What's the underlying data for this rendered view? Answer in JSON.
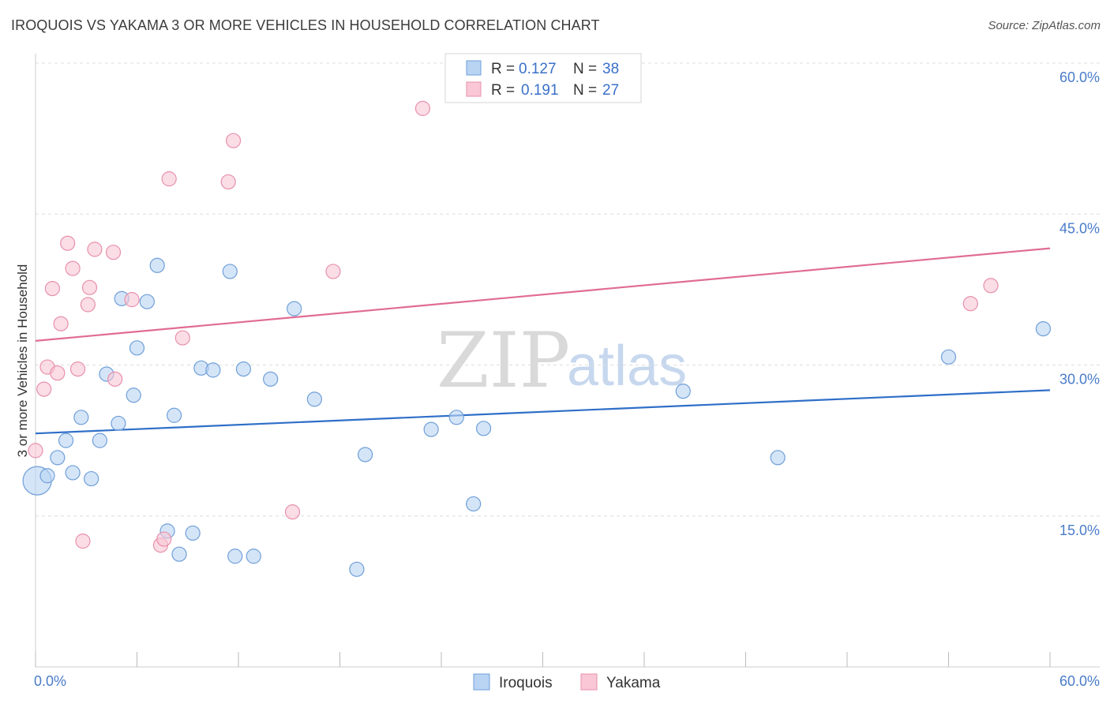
{
  "header": {
    "title": "IROQUOIS VS YAKAMA 3 OR MORE VEHICLES IN HOUSEHOLD CORRELATION CHART",
    "source": "Source: ZipAtlas.com"
  },
  "legend": {
    "rows": [
      {
        "r_label": "R =",
        "r_value": "0.127",
        "n_label": "N =",
        "n_value": "38"
      },
      {
        "r_label": "R =",
        "r_value": "0.191",
        "n_label": "N =",
        "n_value": "27"
      }
    ]
  },
  "watermark": {
    "zip": "ZIP",
    "atlas": "atlas"
  },
  "colors": {
    "iroquois_fill": "#b9d3f3",
    "iroquois_stroke": "#6f9fd8",
    "iroquois_line": "#2f6fc8",
    "yakama_fill": "#f9c7d6",
    "yakama_stroke": "#e890ac",
    "yakama_line": "#e06c94",
    "grid": "#dddddd",
    "tick_text": "#4a7cc9"
  },
  "chart_data": {
    "type": "scatter",
    "title": "IROQUOIS VS YAKAMA 3 OR MORE VEHICLES IN HOUSEHOLD CORRELATION CHART",
    "xlabel": "",
    "ylabel": "3 or more Vehicles in Household",
    "xlim": [
      0,
      60
    ],
    "ylim": [
      0,
      60
    ],
    "x_tick_labels": [
      "0.0%",
      "60.0%"
    ],
    "y_ticks": [
      15,
      30,
      45,
      60
    ],
    "y_tick_labels": [
      "15.0%",
      "30.0%",
      "45.0%",
      "60.0%"
    ],
    "grid": true,
    "legend_position": "top-center",
    "series": [
      {
        "name": "Iroquois",
        "r": 0.127,
        "n": 38,
        "trend": {
          "x": [
            0,
            60
          ],
          "y": [
            23.2,
            27.5
          ]
        },
        "points": [
          {
            "x": 0.1,
            "y": 18.5,
            "big": true
          },
          {
            "x": 0.7,
            "y": 19.0
          },
          {
            "x": 1.3,
            "y": 20.8
          },
          {
            "x": 1.8,
            "y": 22.5
          },
          {
            "x": 2.2,
            "y": 19.3
          },
          {
            "x": 2.7,
            "y": 24.8
          },
          {
            "x": 3.3,
            "y": 18.7
          },
          {
            "x": 3.8,
            "y": 22.5
          },
          {
            "x": 4.2,
            "y": 29.1
          },
          {
            "x": 4.9,
            "y": 24.2
          },
          {
            "x": 5.1,
            "y": 36.6
          },
          {
            "x": 5.8,
            "y": 27.0
          },
          {
            "x": 6.0,
            "y": 31.7
          },
          {
            "x": 6.6,
            "y": 36.3
          },
          {
            "x": 7.2,
            "y": 39.9
          },
          {
            "x": 7.8,
            "y": 13.5
          },
          {
            "x": 8.2,
            "y": 25.0
          },
          {
            "x": 8.5,
            "y": 11.2
          },
          {
            "x": 9.3,
            "y": 13.3
          },
          {
            "x": 9.8,
            "y": 29.7
          },
          {
            "x": 10.5,
            "y": 29.5
          },
          {
            "x": 11.5,
            "y": 39.3
          },
          {
            "x": 11.8,
            "y": 11.0
          },
          {
            "x": 12.3,
            "y": 29.6
          },
          {
            "x": 12.9,
            "y": 11.0
          },
          {
            "x": 13.9,
            "y": 28.6
          },
          {
            "x": 15.3,
            "y": 35.6
          },
          {
            "x": 16.5,
            "y": 26.6
          },
          {
            "x": 19.0,
            "y": 9.7
          },
          {
            "x": 19.5,
            "y": 21.1
          },
          {
            "x": 23.4,
            "y": 23.6
          },
          {
            "x": 24.9,
            "y": 24.8
          },
          {
            "x": 25.9,
            "y": 16.2
          },
          {
            "x": 26.5,
            "y": 23.7
          },
          {
            "x": 38.3,
            "y": 27.4
          },
          {
            "x": 43.9,
            "y": 20.8
          },
          {
            "x": 54.0,
            "y": 30.8
          },
          {
            "x": 59.6,
            "y": 33.6
          }
        ]
      },
      {
        "name": "Yakama",
        "r": 0.191,
        "n": 27,
        "trend": {
          "x": [
            0,
            60
          ],
          "y": [
            32.4,
            41.6
          ]
        },
        "points": [
          {
            "x": 0.0,
            "y": 21.5
          },
          {
            "x": 0.5,
            "y": 27.6
          },
          {
            "x": 0.7,
            "y": 29.8
          },
          {
            "x": 1.0,
            "y": 37.6
          },
          {
            "x": 1.3,
            "y": 29.2
          },
          {
            "x": 1.5,
            "y": 34.1
          },
          {
            "x": 1.9,
            "y": 42.1
          },
          {
            "x": 2.2,
            "y": 39.6
          },
          {
            "x": 2.5,
            "y": 29.6
          },
          {
            "x": 2.8,
            "y": 12.5
          },
          {
            "x": 3.1,
            "y": 36.0
          },
          {
            "x": 3.2,
            "y": 37.7
          },
          {
            "x": 3.5,
            "y": 41.5
          },
          {
            "x": 4.6,
            "y": 41.2
          },
          {
            "x": 4.7,
            "y": 28.6
          },
          {
            "x": 5.7,
            "y": 36.5
          },
          {
            "x": 7.4,
            "y": 12.1
          },
          {
            "x": 7.6,
            "y": 12.7
          },
          {
            "x": 7.9,
            "y": 48.5
          },
          {
            "x": 8.7,
            "y": 32.7
          },
          {
            "x": 11.4,
            "y": 48.2
          },
          {
            "x": 11.7,
            "y": 52.3
          },
          {
            "x": 15.2,
            "y": 15.4
          },
          {
            "x": 17.6,
            "y": 39.3
          },
          {
            "x": 22.9,
            "y": 55.5
          },
          {
            "x": 55.3,
            "y": 36.1
          },
          {
            "x": 56.5,
            "y": 37.9
          }
        ]
      }
    ]
  }
}
